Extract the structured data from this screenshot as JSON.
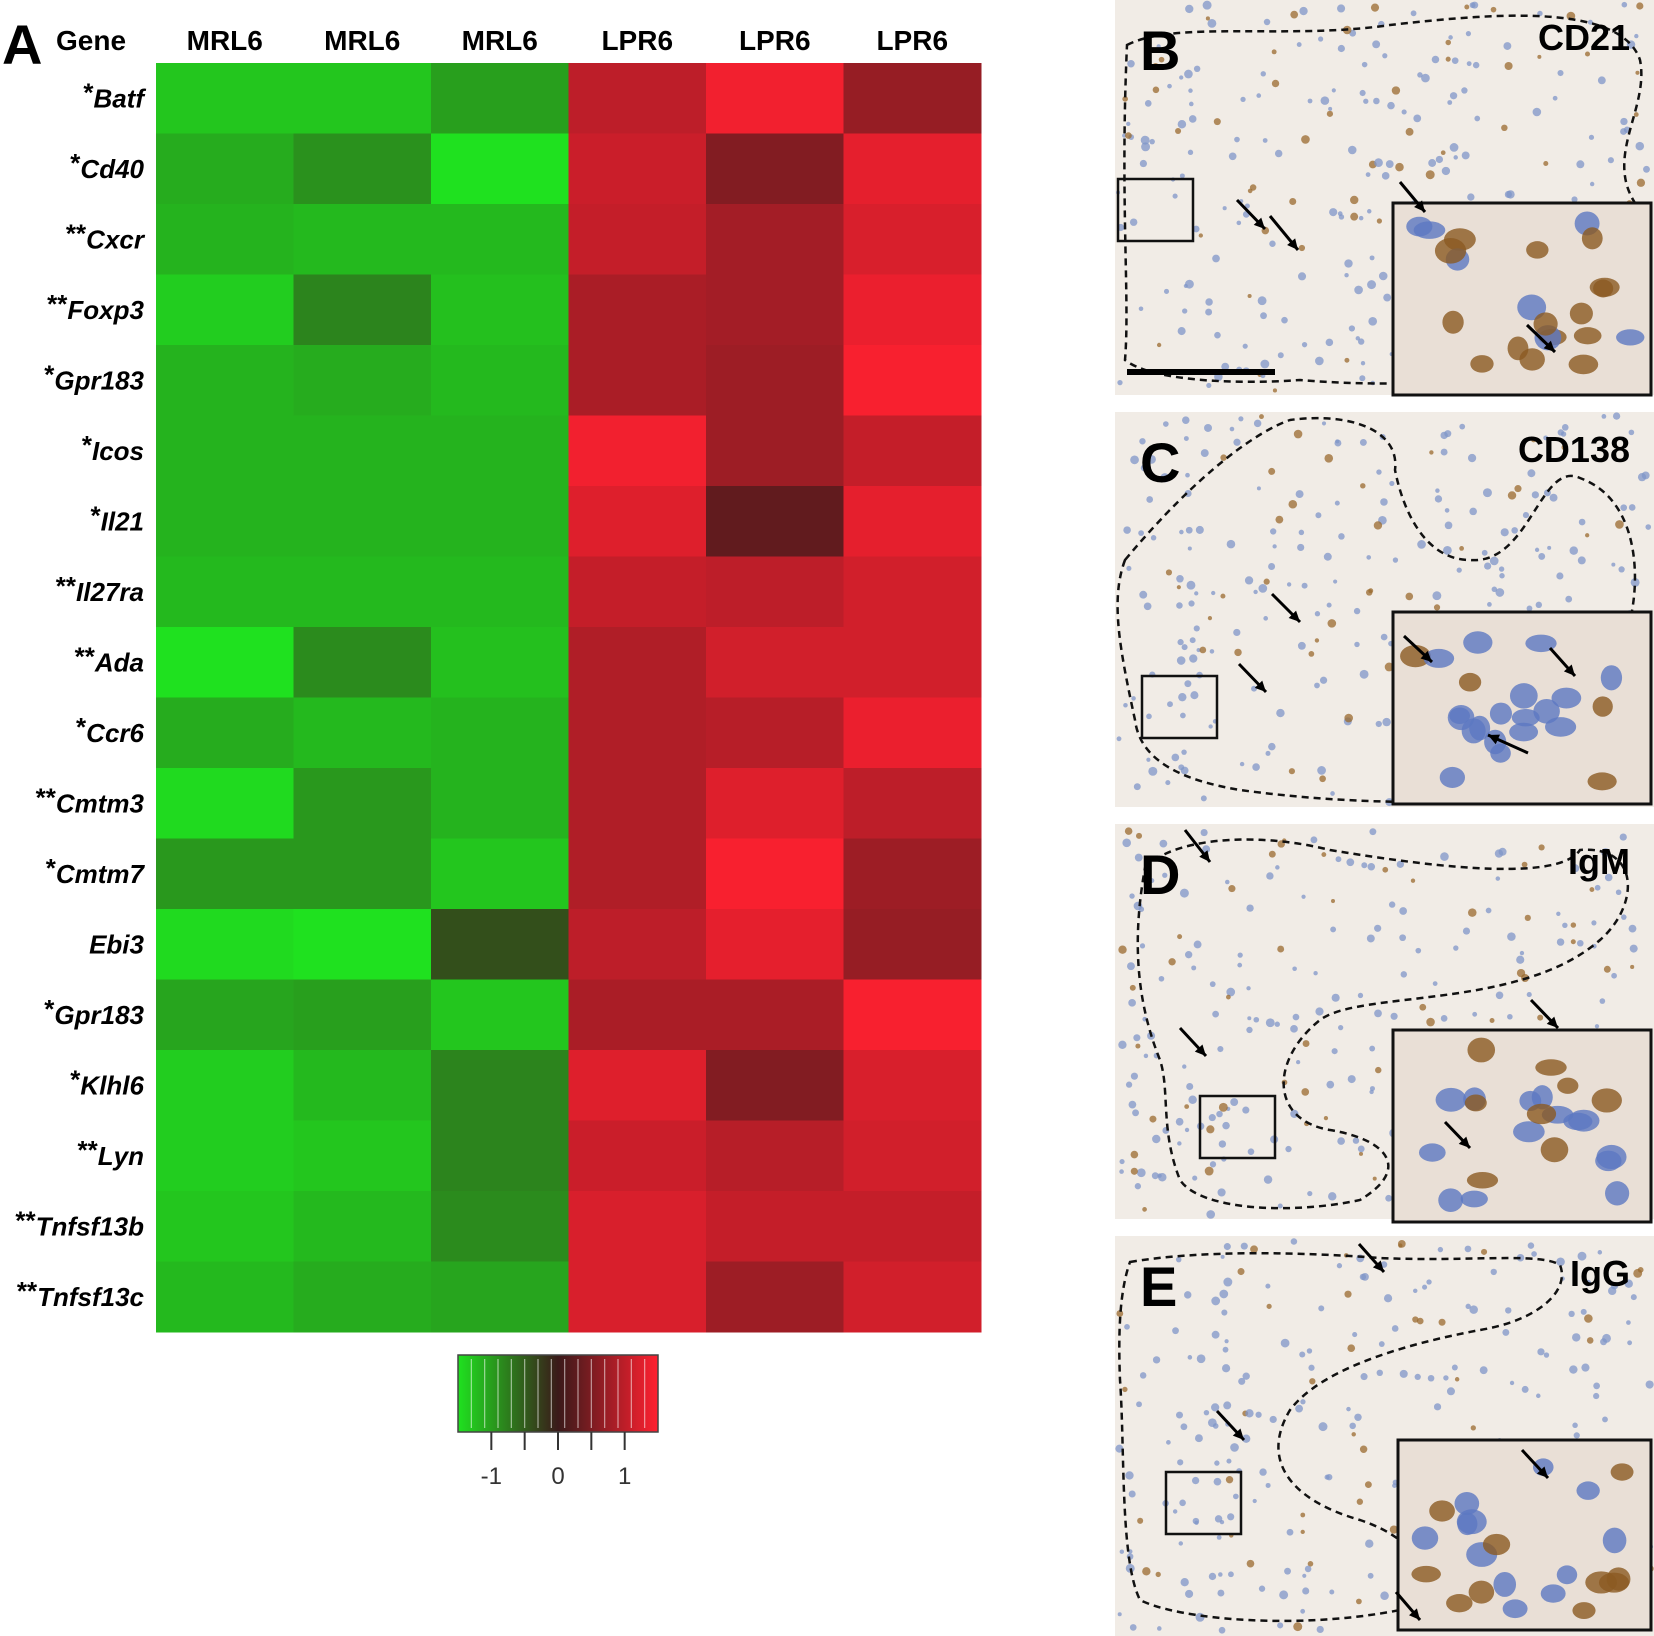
{
  "panels": {
    "a_letter": "A",
    "gene_header": "Gene",
    "micrographs": [
      {
        "letter": "B",
        "marker": "CD21"
      },
      {
        "letter": "C",
        "marker": "CD138"
      },
      {
        "letter": "D",
        "marker": "IgM"
      },
      {
        "letter": "E",
        "marker": "IgG"
      }
    ]
  },
  "chart_data": {
    "type": "heatmap",
    "columns": [
      "MRL6",
      "MRL6",
      "MRL6",
      "LPR6",
      "LPR6",
      "LPR6"
    ],
    "rows": [
      {
        "prefix": "*",
        "gene": "Batf"
      },
      {
        "prefix": "*",
        "gene": "Cd40"
      },
      {
        "prefix": "**",
        "gene": "Cxcr"
      },
      {
        "prefix": "**",
        "gene": "Foxp3"
      },
      {
        "prefix": "*",
        "gene": "Gpr183"
      },
      {
        "prefix": "*",
        "gene": "Icos"
      },
      {
        "prefix": "*",
        "gene": "Il21"
      },
      {
        "prefix": "**",
        "gene": "Il27ra"
      },
      {
        "prefix": "**",
        "gene": "Ada"
      },
      {
        "prefix": "*",
        "gene": "Ccr6"
      },
      {
        "prefix": "**",
        "gene": "Cmtm3"
      },
      {
        "prefix": "*",
        "gene": "Cmtm7"
      },
      {
        "prefix": "",
        "gene": "Ebi3"
      },
      {
        "prefix": "*",
        "gene": "Gpr183"
      },
      {
        "prefix": "*",
        "gene": "Klhl6"
      },
      {
        "prefix": "**",
        "gene": "Lyn"
      },
      {
        "prefix": "**",
        "gene": "Tnfsf13b"
      },
      {
        "prefix": "**",
        "gene": "Tnfsf13c"
      }
    ],
    "values": [
      [
        -1.3,
        -1.3,
        -1.0,
        1.0,
        1.4,
        0.7
      ],
      [
        -1.1,
        -0.9,
        -1.5,
        1.1,
        0.55,
        1.3
      ],
      [
        -1.15,
        -1.2,
        -1.2,
        1.05,
        0.8,
        1.2
      ],
      [
        -1.35,
        -0.8,
        -1.25,
        0.85,
        0.8,
        1.35
      ],
      [
        -1.15,
        -1.1,
        -1.2,
        0.85,
        0.75,
        1.45
      ],
      [
        -1.15,
        -1.15,
        -1.15,
        1.4,
        0.75,
        1.05
      ],
      [
        -1.15,
        -1.15,
        -1.15,
        1.25,
        0.3,
        1.3
      ],
      [
        -1.2,
        -1.2,
        -1.2,
        1.05,
        1.0,
        1.15
      ],
      [
        -1.5,
        -0.85,
        -1.25,
        0.9,
        1.15,
        1.15
      ],
      [
        -1.1,
        -1.2,
        -1.15,
        0.9,
        0.95,
        1.35
      ],
      [
        -1.45,
        -0.95,
        -1.15,
        0.9,
        1.25,
        1.0
      ],
      [
        -0.95,
        -0.95,
        -1.3,
        0.9,
        1.45,
        0.75
      ],
      [
        -1.45,
        -1.55,
        -0.4,
        1.0,
        1.3,
        0.7
      ],
      [
        -1.05,
        -1.0,
        -1.3,
        0.85,
        0.85,
        1.45
      ],
      [
        -1.35,
        -1.2,
        -0.8,
        1.25,
        0.55,
        1.2
      ],
      [
        -1.35,
        -1.3,
        -0.8,
        1.1,
        0.95,
        1.15
      ],
      [
        -1.3,
        -1.2,
        -0.85,
        1.2,
        1.05,
        1.05
      ],
      [
        -1.2,
        -1.1,
        -1.05,
        1.2,
        0.75,
        1.15
      ]
    ],
    "colorbar": {
      "ticks": [
        "-1",
        "0",
        "1"
      ],
      "range": [
        -1.5,
        1.5
      ],
      "low_color": "#1fe11f",
      "mid_color": "#3a1a1a",
      "high_color": "#ff2030"
    }
  }
}
